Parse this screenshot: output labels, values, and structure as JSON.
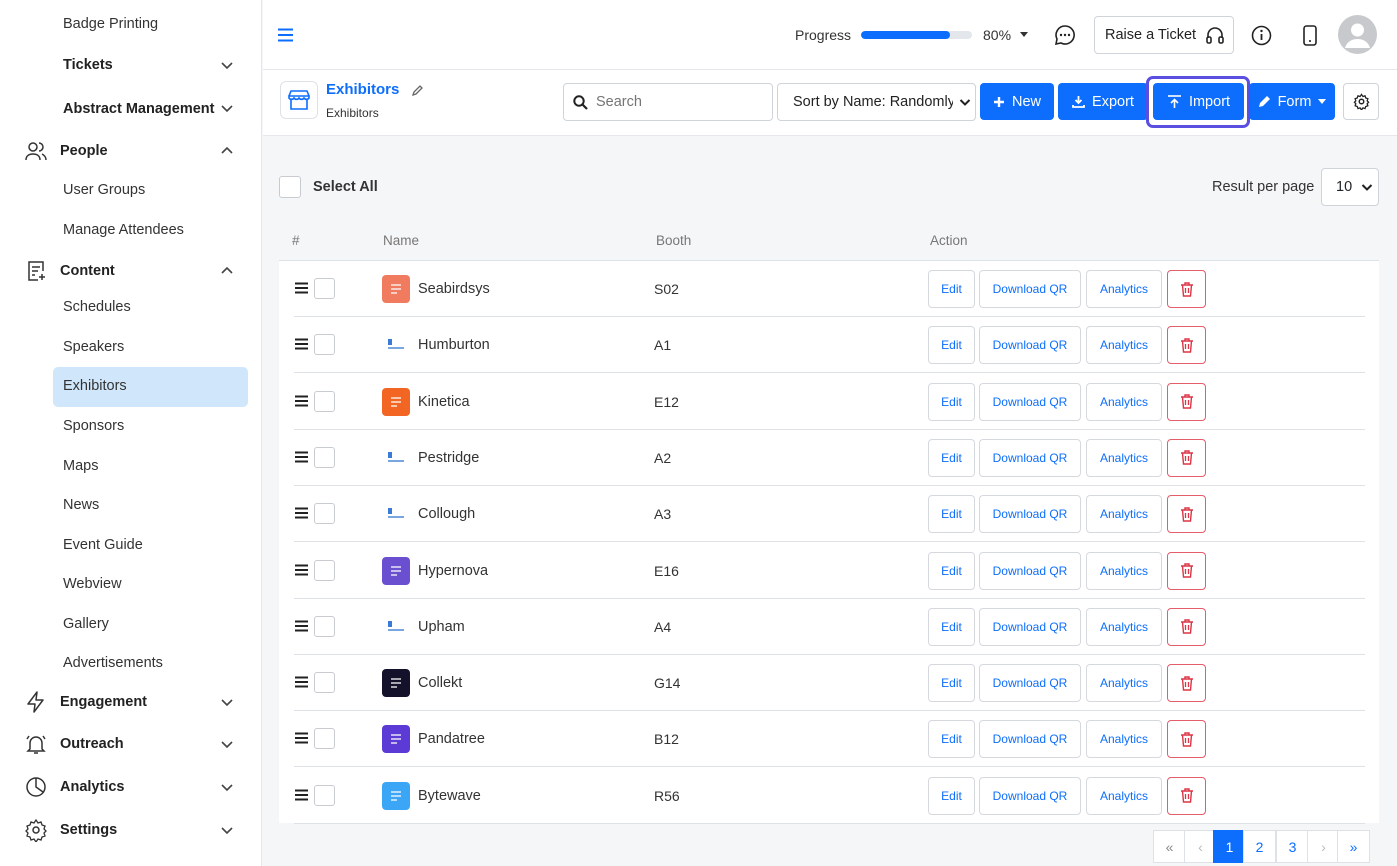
{
  "sidebar": {
    "badge_printing": "Badge Printing",
    "tickets": "Tickets",
    "abstract_management": "Abstract Management",
    "people": "People",
    "user_groups": "User Groups",
    "manage_attendees": "Manage Attendees",
    "content": "Content",
    "schedules": "Schedules",
    "speakers": "Speakers",
    "exhibitors": "Exhibitors",
    "sponsors": "Sponsors",
    "maps": "Maps",
    "news": "News",
    "event_guide": "Event Guide",
    "webview": "Webview",
    "gallery": "Gallery",
    "advertisements": "Advertisements",
    "engagement": "Engagement",
    "outreach": "Outreach",
    "analytics": "Analytics",
    "settings": "Settings"
  },
  "topbar": {
    "progress_label": "Progress",
    "progress_value": 0.8,
    "progress_text": "80%",
    "raise_ticket": "Raise a Ticket"
  },
  "header": {
    "title": "Exhibitors",
    "breadcrumb": "Exhibitors",
    "search_placeholder": "Search",
    "sort_value": "Sort by Name: Randomly",
    "new_label": "New",
    "export_label": "Export",
    "import_label": "Import",
    "form_label": "Form"
  },
  "list": {
    "select_all": "Select All",
    "result_per_page_label": "Result per page",
    "result_per_page_value": "10",
    "columns": {
      "hash": "#",
      "name": "Name",
      "booth": "Booth",
      "action": "Action"
    },
    "action_labels": {
      "edit": "Edit",
      "download_qr": "Download QR",
      "analytics": "Analytics"
    },
    "rows": [
      {
        "name": "Seabirdsys",
        "booth": "S02",
        "logo_color": "#f07b5f"
      },
      {
        "name": "Humburton",
        "booth": "A1",
        "logo_color": "#ffffff"
      },
      {
        "name": "Kinetica",
        "booth": "E12",
        "logo_color": "#f26522"
      },
      {
        "name": "Pestridge",
        "booth": "A2",
        "logo_color": "#ffffff"
      },
      {
        "name": "Collough",
        "booth": "A3",
        "logo_color": "#ffffff"
      },
      {
        "name": "Hypernova",
        "booth": "E16",
        "logo_color": "#6a4fd1"
      },
      {
        "name": "Upham",
        "booth": "A4",
        "logo_color": "#ffffff"
      },
      {
        "name": "Collekt",
        "booth": "G14",
        "logo_color": "#14122b"
      },
      {
        "name": "Pandatree",
        "booth": "B12",
        "logo_color": "#5b3ad6"
      },
      {
        "name": "Bytewave",
        "booth": "R56",
        "logo_color": "#3ba6f5"
      }
    ]
  },
  "pagination": {
    "first": "«",
    "prev": "‹",
    "pages": [
      "1",
      "2",
      "3"
    ],
    "current": "1",
    "next": "›",
    "last": "»"
  },
  "colors": {
    "primary": "#0d6efd",
    "danger": "#dc3545",
    "active_nav": "#cfe6fb"
  }
}
